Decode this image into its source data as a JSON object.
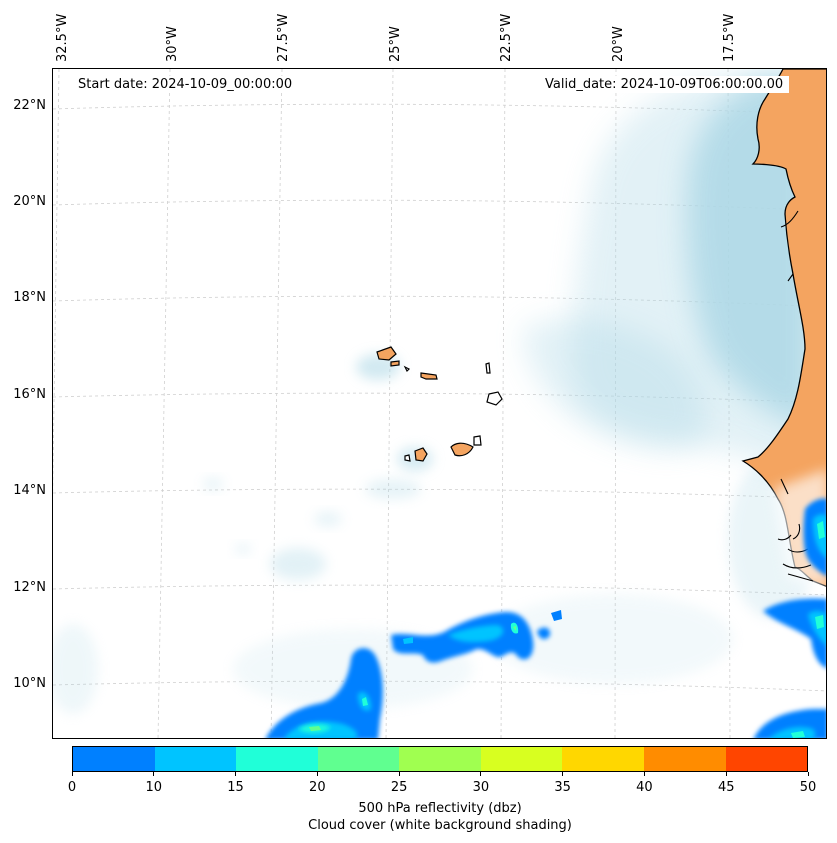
{
  "map": {
    "start_label": "Start date: 2024-10-09_00:00:00",
    "valid_label": "Valid_date: 2024-10-09T06:00:00.00",
    "longitude_labels": [
      "32.5°W",
      "30°W",
      "27.5°W",
      "25°W",
      "22.5°W",
      "20°W",
      "17.5°W"
    ],
    "latitude_labels": [
      "22°N",
      "20°N",
      "18°N",
      "16°N",
      "14°N",
      "12°N",
      "10°N"
    ],
    "land_color": "#f4a460",
    "cloud_color": "#add8e6",
    "coastline_color": "#000000",
    "gridline_style": "dashed light gray"
  },
  "colorbar": {
    "ticks": [
      "0",
      "10",
      "15",
      "20",
      "25",
      "30",
      "35",
      "40",
      "45",
      "50"
    ],
    "colors": [
      "#0080ff",
      "#00c4ff",
      "#20ffd8",
      "#60ff90",
      "#a0ff50",
      "#d8ff20",
      "#ffd700",
      "#ff8c00",
      "#ff4500"
    ],
    "label_line1": "500 hPa reflectivity (dbz)",
    "label_line2": "Cloud cover (white background shading)"
  }
}
